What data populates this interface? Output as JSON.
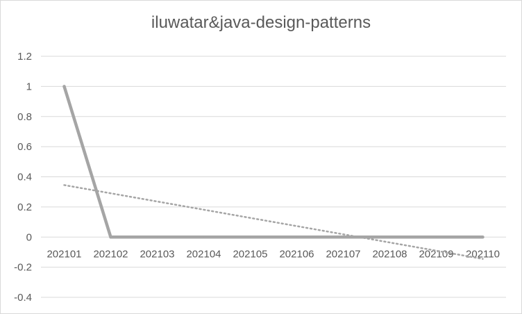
{
  "chart_data": {
    "type": "line",
    "title": "iluwatar&java-design-patterns",
    "categories": [
      "202101",
      "202102",
      "202103",
      "202104",
      "202105",
      "202106",
      "202107",
      "202108",
      "202109",
      "202110"
    ],
    "series": [
      {
        "values": [
          1,
          0,
          0,
          0,
          0,
          0,
          0,
          0,
          0,
          0
        ],
        "color": "#a5a5a5"
      }
    ],
    "trendline": {
      "type": "linear",
      "style": "dotted",
      "color": "#a5a5a5",
      "start": 0.345,
      "end": -0.145
    },
    "ylim": [
      -0.4,
      1.2
    ],
    "yticks": [
      1.2,
      1,
      0.8,
      0.6,
      0.4,
      0.2,
      0,
      -0.2,
      -0.4
    ],
    "grid": true,
    "xlabel": "",
    "ylabel": ""
  }
}
